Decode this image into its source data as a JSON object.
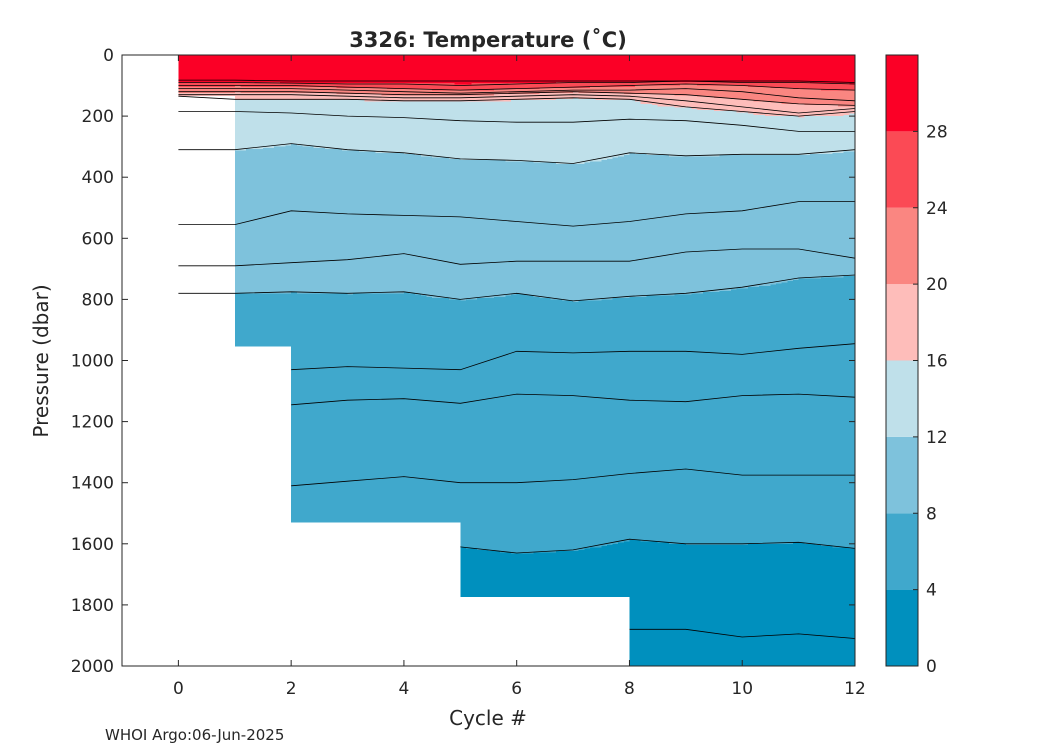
{
  "chart_data": {
    "type": "contour",
    "title": "3326:  Temperature (˚C)",
    "xlabel": "Cycle #",
    "ylabel": "Pressure (dbar)",
    "xlim": [
      -1,
      12
    ],
    "ylim": [
      2000,
      0
    ],
    "y_axis_reversed": true,
    "x_ticks": [
      0,
      2,
      4,
      6,
      8,
      10,
      12
    ],
    "y_ticks": [
      0,
      200,
      400,
      600,
      800,
      1000,
      1200,
      1400,
      1600,
      1800,
      2000
    ],
    "colorbar": {
      "ticks": [
        0,
        4,
        8,
        12,
        16,
        20,
        24,
        28
      ],
      "range": [
        0,
        32
      ],
      "bands": [
        {
          "min": 0,
          "max": 4,
          "color": "#0090BE"
        },
        {
          "min": 4,
          "max": 8,
          "color": "#40A8CC"
        },
        {
          "min": 8,
          "max": 12,
          "color": "#7EC2DC"
        },
        {
          "min": 12,
          "max": 16,
          "color": "#BFE0EA"
        },
        {
          "min": 16,
          "max": 20,
          "color": "#FEBDBA"
        },
        {
          "min": 20,
          "max": 24,
          "color": "#FA8681"
        },
        {
          "min": 24,
          "max": 28,
          "color": "#FB4A55"
        },
        {
          "min": 28,
          "max": 32,
          "color": "#FB0026"
        }
      ]
    },
    "cycles": [
      0,
      1,
      2,
      3,
      4,
      5,
      6,
      7,
      8,
      9,
      10,
      11,
      12
    ],
    "max_pressure_per_cycle": [
      130,
      950,
      1525,
      1525,
      1525,
      1770,
      1770,
      1770,
      2000,
      2000,
      2000,
      2000,
      2000
    ],
    "contour_depths_dbar": {
      "30": [
        82,
        82,
        85,
        85,
        85,
        85,
        85,
        85,
        85,
        85,
        85,
        85,
        90
      ],
      "26": [
        90,
        90,
        92,
        95,
        95,
        100,
        95,
        90,
        90,
        85,
        90,
        90,
        95
      ],
      "24": [
        100,
        100,
        100,
        105,
        110,
        115,
        110,
        105,
        100,
        95,
        100,
        110,
        115
      ],
      "22": [
        110,
        110,
        110,
        115,
        120,
        125,
        120,
        115,
        115,
        110,
        120,
        140,
        150
      ],
      "20": [
        120,
        120,
        120,
        125,
        130,
        130,
        125,
        120,
        125,
        130,
        145,
        160,
        165
      ],
      "18": [
        130,
        130,
        130,
        135,
        140,
        140,
        135,
        130,
        135,
        150,
        170,
        190,
        175
      ],
      "16": [
        135,
        145,
        145,
        145,
        150,
        150,
        145,
        140,
        145,
        170,
        185,
        200,
        185
      ],
      "14": [
        185,
        185,
        190,
        200,
        205,
        215,
        220,
        220,
        210,
        215,
        230,
        250,
        250
      ],
      "12": [
        310,
        310,
        290,
        310,
        320,
        340,
        345,
        355,
        320,
        330,
        325,
        325,
        310
      ],
      "10": [
        555,
        555,
        510,
        520,
        525,
        530,
        545,
        560,
        545,
        520,
        510,
        480,
        480
      ],
      "9": [
        690,
        690,
        680,
        670,
        650,
        685,
        675,
        675,
        675,
        645,
        635,
        635,
        665
      ],
      "8": [
        780,
        780,
        775,
        780,
        775,
        800,
        780,
        805,
        790,
        780,
        760,
        730,
        720
      ],
      "7": [
        null,
        null,
        1030,
        1020,
        1025,
        1030,
        970,
        975,
        970,
        970,
        980,
        960,
        945
      ],
      "6": [
        null,
        null,
        1145,
        1130,
        1125,
        1140,
        1110,
        1115,
        1130,
        1135,
        1115,
        1110,
        1120
      ],
      "5": [
        null,
        null,
        1410,
        1395,
        1380,
        1400,
        1400,
        1390,
        1370,
        1355,
        1375,
        1375,
        1375
      ],
      "4": [
        null,
        null,
        null,
        null,
        null,
        1610,
        1630,
        1620,
        1585,
        1600,
        1600,
        1595,
        1615
      ],
      "3": [
        null,
        null,
        null,
        null,
        null,
        null,
        null,
        null,
        1880,
        1880,
        1905,
        1895,
        1910
      ]
    }
  },
  "footer": {
    "credit": "WHOI Argo:06-Jun-2025"
  }
}
